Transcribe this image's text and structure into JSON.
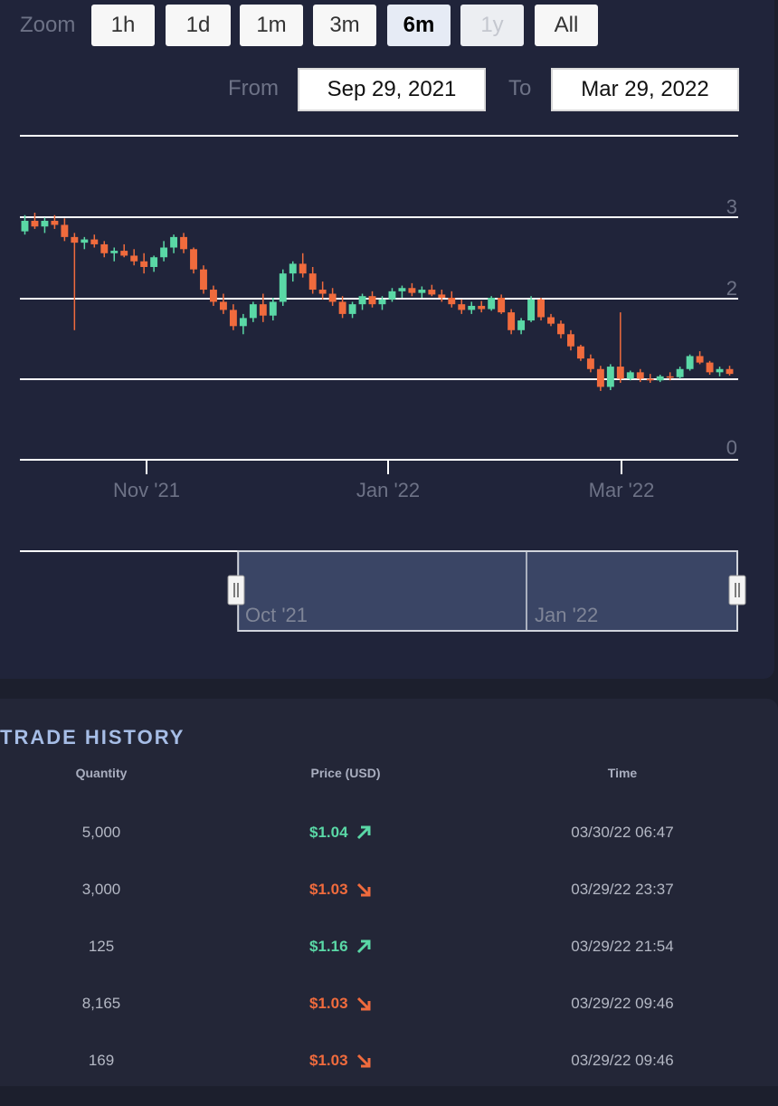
{
  "zoom": {
    "label": "Zoom",
    "buttons": [
      {
        "label": "1h",
        "state": "normal"
      },
      {
        "label": "1d",
        "state": "normal"
      },
      {
        "label": "1m",
        "state": "normal"
      },
      {
        "label": "3m",
        "state": "normal"
      },
      {
        "label": "6m",
        "state": "active"
      },
      {
        "label": "1y",
        "state": "disabled"
      },
      {
        "label": "All",
        "state": "normal"
      }
    ]
  },
  "range": {
    "from_label": "From",
    "from_value": "Sep 29, 2021",
    "to_label": "To",
    "to_value": "Mar 29, 2022"
  },
  "chart_data": {
    "type": "candlestick",
    "y_ticks": [
      "3",
      "2",
      "0"
    ],
    "x_ticks": [
      "Nov '21",
      "Jan '22",
      "Mar '22"
    ],
    "ylim": [
      0,
      4
    ],
    "x": [
      "Sep 29, 2021",
      "Mar 29, 2022"
    ],
    "series": [
      {
        "values": [
          [
            2.82,
            3.02,
            2.78,
            2.95
          ],
          [
            2.95,
            3.05,
            2.85,
            2.88
          ],
          [
            2.88,
            2.99,
            2.8,
            2.95
          ],
          [
            2.95,
            3.02,
            2.85,
            2.9
          ],
          [
            2.9,
            2.98,
            2.7,
            2.75
          ],
          [
            2.75,
            2.8,
            1.6,
            2.68
          ],
          [
            2.68,
            2.75,
            2.6,
            2.72
          ],
          [
            2.72,
            2.78,
            2.62,
            2.66
          ],
          [
            2.66,
            2.7,
            2.5,
            2.55
          ],
          [
            2.55,
            2.62,
            2.45,
            2.58
          ],
          [
            2.58,
            2.66,
            2.5,
            2.52
          ],
          [
            2.52,
            2.6,
            2.4,
            2.45
          ],
          [
            2.45,
            2.55,
            2.3,
            2.38
          ],
          [
            2.38,
            2.52,
            2.32,
            2.5
          ],
          [
            2.5,
            2.7,
            2.45,
            2.62
          ],
          [
            2.62,
            2.78,
            2.55,
            2.75
          ],
          [
            2.75,
            2.8,
            2.55,
            2.6
          ],
          [
            2.6,
            2.62,
            2.3,
            2.35
          ],
          [
            2.35,
            2.4,
            2.05,
            2.1
          ],
          [
            2.1,
            2.15,
            1.9,
            1.95
          ],
          [
            1.95,
            2.05,
            1.8,
            1.85
          ],
          [
            1.85,
            1.92,
            1.6,
            1.65
          ],
          [
            1.65,
            1.8,
            1.55,
            1.75
          ],
          [
            1.75,
            1.95,
            1.7,
            1.92
          ],
          [
            1.92,
            2.05,
            1.7,
            1.78
          ],
          [
            1.78,
            2.0,
            1.72,
            1.95
          ],
          [
            1.95,
            2.35,
            1.9,
            2.3
          ],
          [
            2.3,
            2.45,
            2.2,
            2.42
          ],
          [
            2.42,
            2.55,
            2.25,
            2.3
          ],
          [
            2.3,
            2.38,
            2.05,
            2.1
          ],
          [
            2.1,
            2.2,
            1.98,
            2.05
          ],
          [
            2.05,
            2.12,
            1.9,
            1.95
          ],
          [
            1.95,
            2.02,
            1.75,
            1.8
          ],
          [
            1.8,
            1.95,
            1.75,
            1.92
          ],
          [
            1.92,
            2.05,
            1.85,
            2.02
          ],
          [
            2.02,
            2.08,
            1.88,
            1.92
          ],
          [
            1.92,
            2.02,
            1.85,
            1.98
          ],
          [
            1.98,
            2.12,
            1.95,
            2.08
          ],
          [
            2.08,
            2.15,
            2.0,
            2.12
          ],
          [
            2.12,
            2.18,
            2.02,
            2.06
          ],
          [
            2.06,
            2.14,
            2.0,
            2.1
          ],
          [
            2.1,
            2.16,
            2.02,
            2.04
          ],
          [
            2.04,
            2.1,
            1.95,
            2.0
          ],
          [
            2.0,
            2.08,
            1.88,
            1.92
          ],
          [
            1.92,
            1.98,
            1.8,
            1.85
          ],
          [
            1.85,
            1.95,
            1.8,
            1.9
          ],
          [
            1.9,
            1.96,
            1.82,
            1.86
          ],
          [
            1.86,
            2.02,
            1.84,
            2.0
          ],
          [
            2.0,
            2.04,
            1.8,
            1.82
          ],
          [
            1.82,
            1.86,
            1.55,
            1.6
          ],
          [
            1.6,
            1.75,
            1.55,
            1.72
          ],
          [
            1.72,
            2.02,
            1.7,
            1.98
          ],
          [
            1.98,
            2.0,
            1.72,
            1.76
          ],
          [
            1.76,
            1.8,
            1.65,
            1.68
          ],
          [
            1.68,
            1.72,
            1.5,
            1.55
          ],
          [
            1.55,
            1.6,
            1.35,
            1.4
          ],
          [
            1.4,
            1.42,
            1.22,
            1.25
          ],
          [
            1.25,
            1.3,
            1.08,
            1.12
          ],
          [
            1.12,
            1.16,
            0.85,
            0.9
          ],
          [
            0.9,
            1.18,
            0.86,
            1.15
          ],
          [
            1.15,
            1.82,
            0.95,
            1.0
          ],
          [
            1.0,
            1.1,
            0.98,
            1.08
          ],
          [
            1.08,
            1.12,
            0.96,
            1.0
          ],
          [
            1.0,
            1.06,
            0.95,
            0.98
          ],
          [
            0.98,
            1.05,
            0.96,
            1.03
          ],
          [
            1.03,
            1.08,
            0.98,
            1.02
          ],
          [
            1.02,
            1.15,
            1.0,
            1.12
          ],
          [
            1.12,
            1.3,
            1.1,
            1.28
          ],
          [
            1.28,
            1.34,
            1.18,
            1.2
          ],
          [
            1.2,
            1.22,
            1.05,
            1.08
          ],
          [
            1.08,
            1.15,
            1.03,
            1.12
          ],
          [
            1.12,
            1.16,
            1.04,
            1.06
          ]
        ]
      }
    ]
  },
  "navigator": {
    "labels": [
      "Oct '21",
      "Jan '22"
    ],
    "selection": [
      0.3,
      1.0
    ]
  },
  "trade_history": {
    "title": "TRADE HISTORY",
    "headers": [
      "Quantity",
      "Price (USD)",
      "Time"
    ],
    "rows": [
      {
        "quantity": "5,000",
        "price": "$1.04",
        "direction": "up",
        "time": "03/30/22 06:47"
      },
      {
        "quantity": "3,000",
        "price": "$1.03",
        "direction": "down",
        "time": "03/29/22 23:37"
      },
      {
        "quantity": "125",
        "price": "$1.16",
        "direction": "up",
        "time": "03/29/22 21:54"
      },
      {
        "quantity": "8,165",
        "price": "$1.03",
        "direction": "down",
        "time": "03/29/22 09:46"
      },
      {
        "quantity": "169",
        "price": "$1.03",
        "direction": "down",
        "time": "03/29/22 09:46"
      }
    ]
  },
  "colors": {
    "up": "#5ad8a6",
    "down": "#f06b3d",
    "navigator_fill": "#3a4565"
  }
}
